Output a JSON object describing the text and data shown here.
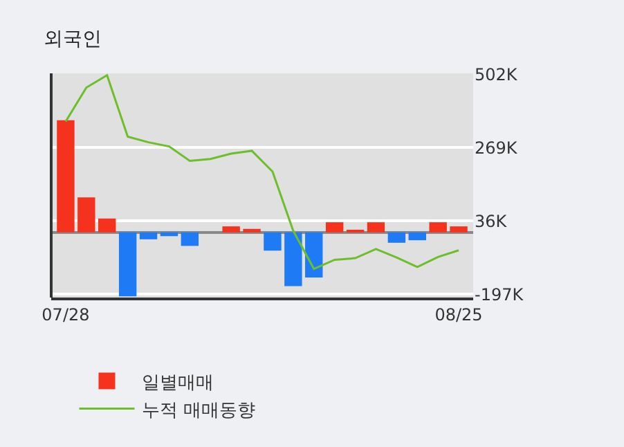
{
  "chart_data": {
    "type": "bar",
    "title": "외국인",
    "categories": [
      "07/28",
      null,
      null,
      null,
      null,
      null,
      null,
      null,
      null,
      null,
      null,
      null,
      null,
      null,
      null,
      null,
      null,
      null,
      null,
      "08/25"
    ],
    "series": [
      {
        "name": "일별매매",
        "colors": [
          "#f5321e",
          "#f5321e",
          "#f5321e",
          "#1e7af5",
          "#1e7af5",
          "#1e7af5",
          "#1e7af5",
          "#f5321e",
          "#f5321e",
          "#f5321e",
          "#1e7af5",
          "#1e7af5",
          "#1e7af5",
          "#f5321e",
          "#f5321e",
          "#f5321e",
          "#1e7af5",
          "#1e7af5",
          "#f5321e",
          "#f5321e"
        ],
        "values": [
          356000,
          111000,
          44000,
          -203000,
          -22000,
          -12000,
          -43000,
          0,
          19000,
          11000,
          -58000,
          -171000,
          -143000,
          32000,
          7000,
          32000,
          -33000,
          -25000,
          32000,
          19000
        ]
      },
      {
        "name": "누적 매매동향",
        "type": "line",
        "color": "#6cbf2a",
        "values": [
          352000,
          460000,
          499000,
          304000,
          286000,
          273000,
          227000,
          233000,
          250000,
          259000,
          193000,
          5000,
          -116000,
          -87000,
          -82000,
          -53000,
          -80000,
          -110000,
          -78000,
          -57000
        ]
      }
    ],
    "ylim": [
      -207000,
      505000
    ],
    "yticks": [
      {
        "value": 502000,
        "label": "502K"
      },
      {
        "value": 269000,
        "label": "269K"
      },
      {
        "value": 36000,
        "label": "36K"
      },
      {
        "value": -197000,
        "label": "-197K"
      }
    ],
    "grid": "y",
    "legend": "bottom",
    "marker": "none",
    "line_style": "solid"
  }
}
